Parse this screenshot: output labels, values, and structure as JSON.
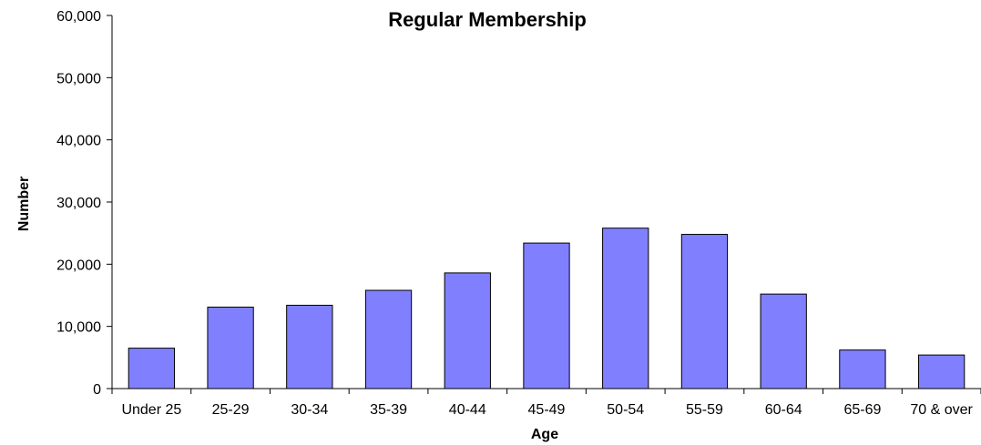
{
  "chart_data": {
    "type": "bar",
    "title": "Regular Membership",
    "xlabel": "Age",
    "ylabel": "Number",
    "categories": [
      "Under 25",
      "25-29",
      "30-34",
      "35-39",
      "40-44",
      "45-49",
      "50-54",
      "55-59",
      "60-64",
      "65-69",
      "70 & over"
    ],
    "values": [
      6500,
      13100,
      13400,
      15800,
      18600,
      23400,
      25800,
      24800,
      15200,
      6200,
      5400
    ],
    "ylim": [
      0,
      60000
    ],
    "yticks": [
      "0",
      "10,000",
      "20,000",
      "30,000",
      "40,000",
      "50,000",
      "60,000"
    ],
    "ytick_values": [
      0,
      10000,
      20000,
      30000,
      40000,
      50000,
      60000
    ],
    "grid": false,
    "legend": "none",
    "bar_color": "#8080FF",
    "bar_edge_color": "#000000"
  }
}
